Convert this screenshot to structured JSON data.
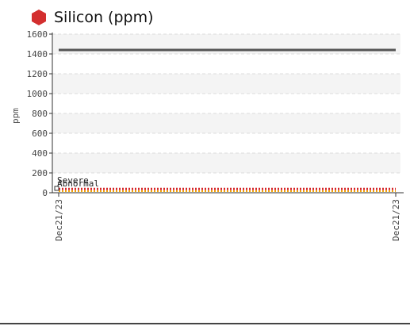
{
  "chart_data": {
    "type": "line",
    "title": "Silicon (ppm)",
    "ylabel": "ppm",
    "xlabel": "",
    "ylim": [
      0,
      1600
    ],
    "yticks": [
      "0",
      "200",
      "400",
      "600",
      "800",
      "1000",
      "1200",
      "1400",
      "1600"
    ],
    "x": [
      "Dec21/23",
      "Dec21/23"
    ],
    "grid": true,
    "series": [
      {
        "values": [
          1440,
          1440
        ],
        "color": "#555555"
      },
      {
        "values": [
          38,
          38
        ],
        "color": "#d62728"
      },
      {
        "values": [
          16,
          16
        ],
        "color": "#f2a900"
      }
    ],
    "annotations": [
      "Severe",
      "Abnormal"
    ]
  },
  "colors": {
    "title_icon": "#d32f2f",
    "grid": "#dddddd",
    "band": "#f4f4f4"
  }
}
